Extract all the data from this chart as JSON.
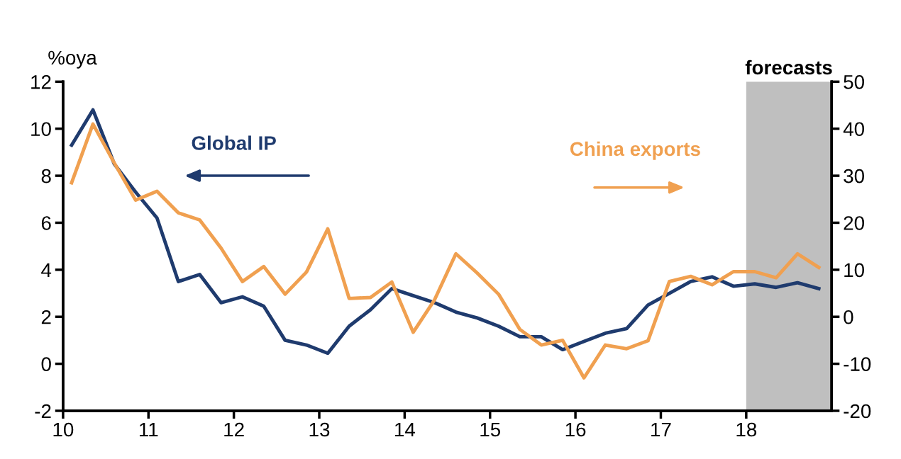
{
  "chart_data": {
    "type": "line",
    "ylabel": "%oya",
    "x": [
      10.1,
      10.35,
      10.6,
      10.85,
      11.1,
      11.35,
      11.6,
      11.85,
      12.1,
      12.35,
      12.6,
      12.85,
      13.1,
      13.35,
      13.6,
      13.85,
      14.1,
      14.35,
      14.6,
      14.85,
      15.1,
      15.35,
      15.6,
      15.85,
      16.1,
      16.35,
      16.6,
      16.85,
      17.1,
      17.35,
      17.6,
      17.85,
      18.1,
      18.35,
      18.6,
      18.85
    ],
    "series": [
      {
        "name": "Global IP",
        "color": "#1f3b6e",
        "values": [
          9.3,
          10.8,
          8.5,
          7.3,
          6.2,
          3.5,
          3.8,
          2.6,
          2.85,
          2.45,
          1.0,
          0.8,
          0.45,
          1.6,
          2.3,
          3.2,
          2.9,
          2.6,
          2.2,
          1.95,
          1.6,
          1.15,
          1.15,
          0.6,
          0.95,
          1.3,
          1.5,
          2.5,
          3.0,
          3.5,
          3.7,
          3.3,
          3.4,
          3.25,
          3.45,
          3.2
        ]
      },
      {
        "name": "China exports",
        "color": "#f0a050",
        "axis": "y2",
        "values": [
          28.5,
          41,
          32.7,
          24.8,
          26.7,
          22.1,
          20.6,
          14.6,
          7.5,
          10.7,
          4.8,
          9.5,
          18.7,
          3.9,
          4.1,
          7.4,
          -3.3,
          3.6,
          13.4,
          9.3,
          4.8,
          -2.7,
          -6.0,
          -5.0,
          -13,
          -6,
          -6.8,
          -5.1,
          7.5,
          8.6,
          6.8,
          9.6,
          9.6,
          8.3,
          13.4,
          10.5
        ]
      }
    ],
    "xlim": [
      10,
      19
    ],
    "xticks": [
      10,
      11,
      12,
      13,
      14,
      15,
      16,
      17,
      18
    ],
    "ylim": [
      -2,
      12
    ],
    "yticks": [
      -2,
      0,
      2,
      4,
      6,
      8,
      10,
      12
    ],
    "y2lim": [
      -20,
      50
    ],
    "y2ticks": [
      -20,
      -10,
      0,
      10,
      20,
      30,
      40,
      50
    ],
    "bands": [
      {
        "axis": "x",
        "from": 18,
        "to": 19,
        "label": "forecasts",
        "color": "#bfbfbf"
      }
    ],
    "grid": false,
    "legend": false,
    "marker": "none",
    "line_style": "solid"
  }
}
